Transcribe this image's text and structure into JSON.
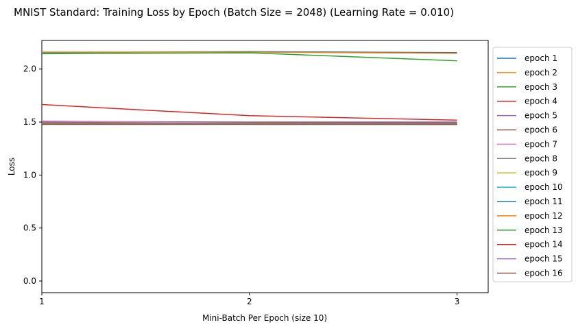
{
  "chart_data": {
    "type": "line",
    "title": "MNIST Standard: Training Loss by Epoch (Batch Size = 2048) (Learning Rate = 0.010)",
    "xlabel": "Mini-Batch Per Epoch (size 10)",
    "ylabel": "Loss",
    "x": [
      1,
      2,
      3
    ],
    "xlim": [
      1,
      3.15
    ],
    "ylim": [
      -0.11,
      2.27
    ],
    "xticks": [
      "1",
      "2",
      "3"
    ],
    "yticks": [
      "0.0",
      "0.5",
      "1.0",
      "1.5",
      "2.0"
    ],
    "grid": false,
    "legend_position": "outside-right",
    "series": [
      {
        "name": "epoch 1",
        "color": "#1f77b4",
        "values": [
          2.155,
          2.165,
          2.155
        ]
      },
      {
        "name": "epoch 2",
        "color": "#ff7f0e",
        "values": [
          2.16,
          2.16,
          2.148
        ]
      },
      {
        "name": "epoch 3",
        "color": "#2ca02c",
        "values": [
          2.145,
          2.153,
          2.078
        ]
      },
      {
        "name": "epoch 4",
        "color": "#d62728",
        "values": [
          1.665,
          1.56,
          1.518
        ]
      },
      {
        "name": "epoch 5",
        "color": "#9467bd",
        "values": [
          1.505,
          1.5,
          1.5
        ]
      },
      {
        "name": "epoch 6",
        "color": "#8c564b",
        "values": [
          1.495,
          1.495,
          1.492
        ]
      },
      {
        "name": "epoch 7",
        "color": "#e377c2",
        "values": [
          1.51,
          1.49,
          1.487
        ]
      },
      {
        "name": "epoch 8",
        "color": "#7f7f7f",
        "values": [
          1.49,
          1.488,
          1.486
        ]
      },
      {
        "name": "epoch 9",
        "color": "#bcbd22",
        "values": [
          1.485,
          1.485,
          1.484
        ]
      },
      {
        "name": "epoch 10",
        "color": "#17becf",
        "values": [
          1.483,
          1.483,
          1.482
        ]
      },
      {
        "name": "epoch 11",
        "color": "#1f77b4",
        "values": [
          1.482,
          1.482,
          1.481
        ]
      },
      {
        "name": "epoch 12",
        "color": "#ff7f0e",
        "values": [
          1.481,
          1.481,
          1.48
        ]
      },
      {
        "name": "epoch 13",
        "color": "#2ca02c",
        "values": [
          1.48,
          1.48,
          1.479
        ]
      },
      {
        "name": "epoch 14",
        "color": "#d62728",
        "values": [
          1.48,
          1.479,
          1.479
        ]
      },
      {
        "name": "epoch 15",
        "color": "#9467bd",
        "values": [
          1.479,
          1.479,
          1.478
        ]
      },
      {
        "name": "epoch 16",
        "color": "#8c564b",
        "values": [
          1.478,
          1.478,
          1.477
        ]
      }
    ]
  }
}
